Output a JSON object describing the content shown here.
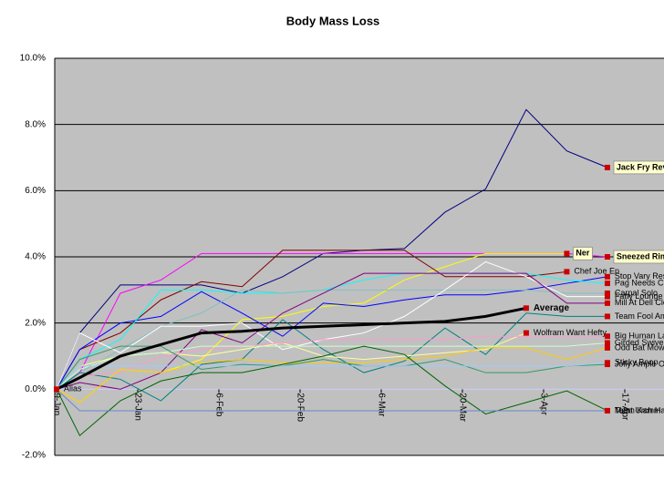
{
  "chart_data": {
    "type": "line",
    "title": "Body Mass Loss",
    "x": [
      "9-Jan",
      "13-Jan",
      "20-Jan",
      "27-Jan",
      "3-Feb",
      "10-Feb",
      "17-Feb",
      "24-Feb",
      "3-Mar",
      "10-Mar",
      "17-Mar",
      "24-Mar",
      "31-Mar",
      "7-Apr",
      "14-Apr"
    ],
    "xlim": [
      "9-Jan",
      "22-Apr"
    ],
    "xticks": [
      "9-Jan",
      "23-Jan",
      "6-Feb",
      "20-Feb",
      "6-Mar",
      "20-Mar",
      "3-Apr",
      "17-Apr"
    ],
    "ylim": [
      -2,
      10
    ],
    "yticks": [
      {
        "value": -2,
        "label": "-2.0%"
      },
      {
        "value": 0,
        "label": "0.0%"
      },
      {
        "value": 2,
        "label": "2.0%"
      },
      {
        "value": 4,
        "label": "4.0%"
      },
      {
        "value": 6,
        "label": "6.0%"
      },
      {
        "value": 8,
        "label": "8.0%"
      },
      {
        "value": 10,
        "label": "10.0%"
      }
    ],
    "grid": true,
    "series": [
      {
        "name": "Jack Fry Revs Fee",
        "color": "#000080",
        "highlight": true,
        "values": [
          0,
          1.7,
          3.15,
          3.15,
          3.15,
          2.9,
          3.4,
          4.1,
          4.2,
          4.25,
          5.35,
          6.05,
          8.45,
          7.2,
          6.7
        ]
      },
      {
        "name": "Sneezed Rims In",
        "color": "#ff00ff",
        "highlight": true,
        "values": [
          0,
          0.5,
          2.9,
          3.3,
          4.1,
          4.1,
          4.1,
          4.1,
          4.1,
          4.1,
          4.1,
          4.1,
          4.1,
          4.1,
          4.0
        ]
      },
      {
        "name": "Ner",
        "color": "#ffff00",
        "highlight": true,
        "values": [
          0,
          -0.4,
          0.6,
          0.5,
          0.9,
          2.1,
          2.2,
          2.5,
          2.6,
          3.3,
          3.7,
          4.1,
          4.1,
          4.1,
          null
        ]
      },
      {
        "name": "Chef Joe Ep",
        "color": "#800000",
        "values": [
          0,
          1.2,
          1.7,
          2.7,
          3.25,
          3.1,
          4.2,
          4.2,
          4.2,
          4.2,
          3.4,
          3.4,
          3.4,
          3.55,
          null
        ]
      },
      {
        "name": "Stop Vary Research",
        "color": "#0000ff",
        "values": [
          0,
          1.2,
          2.0,
          2.2,
          2.95,
          2.3,
          1.6,
          2.6,
          2.5,
          2.7,
          2.85,
          2.85,
          3.0,
          3.2,
          3.4
        ]
      },
      {
        "name": "Pag Needs Chek",
        "color": "#00ffff",
        "values": [
          0,
          0.9,
          1.5,
          3.0,
          3.0,
          2.9,
          2.9,
          3.0,
          3.3,
          3.5,
          3.5,
          3.5,
          3.5,
          3.3,
          3.2
        ]
      },
      {
        "name": "Carpal Solo",
        "color": "#80c0c0",
        "values": [
          0,
          0.5,
          1.2,
          1.9,
          2.3,
          3.0,
          2.9,
          3.0,
          3.0,
          3.0,
          3.0,
          3.0,
          3.0,
          2.9,
          2.9
        ]
      },
      {
        "name": "Fatty Lounge Pants",
        "color": "#ffffff",
        "values": [
          0,
          1.7,
          1.1,
          1.9,
          1.9,
          2.0,
          1.2,
          1.5,
          1.7,
          2.2,
          3.0,
          3.85,
          3.4,
          2.8,
          2.8
        ]
      },
      {
        "name": "Mill At Dell Clench",
        "color": "#800080",
        "values": [
          0,
          0.2,
          0,
          0.5,
          1.8,
          1.4,
          2.3,
          2.9,
          3.5,
          3.5,
          3.5,
          3.5,
          3.5,
          2.6,
          2.6
        ]
      },
      {
        "name": "Team Fool Ambush",
        "color": "#008080",
        "values": [
          0,
          0.5,
          0.3,
          -0.35,
          0.75,
          0.9,
          2.1,
          1.2,
          0.5,
          0.85,
          1.85,
          1.05,
          2.3,
          2.2,
          2.2
        ]
      },
      {
        "name": "Wolfram Want Hefty",
        "color": "#ffff99",
        "values": [
          0,
          0.7,
          1.0,
          1.1,
          1.0,
          1.2,
          1.4,
          1.0,
          0.9,
          1.0,
          1.1,
          1.2,
          1.7,
          null,
          null
        ]
      },
      {
        "name": "Big Human Lap",
        "color": "#ff99cc",
        "values": [
          0,
          0.4,
          0.5,
          1.0,
          1.2,
          1.3,
          1.4,
          1.5,
          1.5,
          1.5,
          1.5,
          1.6,
          1.6,
          1.6,
          1.6
        ]
      },
      {
        "name": "Girded Swivels",
        "color": "#ccffcc",
        "values": [
          0,
          0.6,
          1.0,
          1.1,
          1.3,
          1.3,
          1.3,
          1.3,
          1.3,
          1.3,
          1.3,
          1.3,
          1.3,
          1.3,
          1.4
        ]
      },
      {
        "name": "Odd Bat Mown",
        "color": "#ffcc00",
        "values": [
          0,
          -0.4,
          0.6,
          0.5,
          0.8,
          0.9,
          0.8,
          0.8,
          0.8,
          0.9,
          1.0,
          1.25,
          1.25,
          0.9,
          1.25
        ]
      },
      {
        "name": "Jolly Ample Ogre",
        "color": "#339966",
        "values": [
          0,
          0.9,
          1.3,
          1.3,
          0.6,
          0.75,
          0.7,
          0.9,
          0.7,
          0.7,
          0.9,
          0.5,
          0.5,
          0.7,
          0.75
        ]
      },
      {
        "name": "Sticky Boop",
        "color": "#99ccff",
        "values": [
          0,
          0.7,
          0.7,
          0.7,
          0.7,
          0.7,
          0.7,
          0.7,
          0.7,
          0.7,
          0.7,
          0.7,
          0.7,
          0.7,
          0.8
        ]
      },
      {
        "name": "Team Kamm",
        "color": "#006400",
        "values": [
          0,
          -1.4,
          -0.35,
          0.25,
          0.5,
          0.5,
          0.75,
          1.0,
          1.3,
          1.05,
          0.1,
          -0.75,
          -0.4,
          -0.05,
          -0.65
        ]
      },
      {
        "name": "Meat Urch Hanis",
        "color": "#6688cc",
        "values": [
          0,
          -0.65,
          -0.65,
          -0.65,
          -0.65,
          -0.65,
          -0.65,
          -0.65,
          -0.65,
          -0.65,
          -0.65,
          -0.65,
          -0.65,
          -0.65,
          -0.65
        ]
      },
      {
        "name": "Alias",
        "color": "#ff0000",
        "values": [
          0,
          null,
          null,
          null,
          null,
          null,
          null,
          null,
          null,
          null,
          null,
          null,
          null,
          null,
          null
        ]
      },
      {
        "name": "Average",
        "color": "#000000",
        "bold": true,
        "values": [
          0,
          0.35,
          1.0,
          1.35,
          1.7,
          1.75,
          1.85,
          1.9,
          1.95,
          2.0,
          2.05,
          2.2,
          2.45,
          null,
          null
        ]
      }
    ]
  }
}
